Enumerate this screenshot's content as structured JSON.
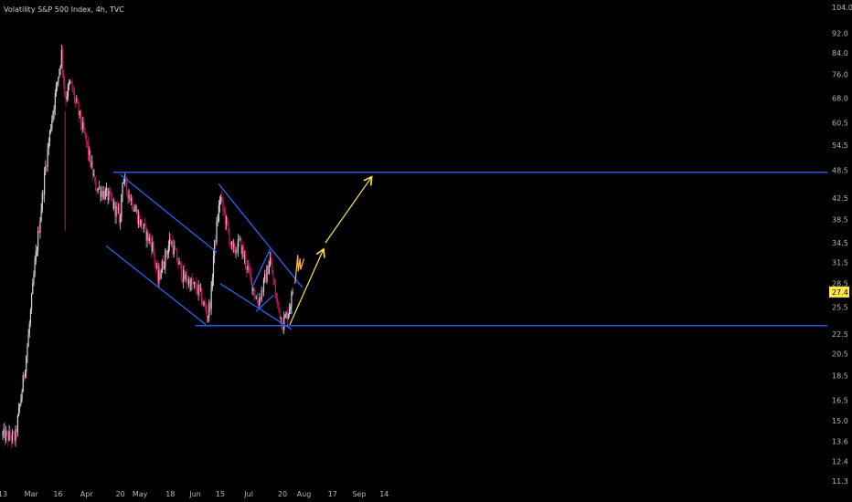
{
  "header": {
    "title": "Volatility S&P 500 Index, 4h, TVC"
  },
  "colors": {
    "background": "#000000",
    "up": "#d1d4dc",
    "down": "#c2185b",
    "trendline": "#2962ff",
    "arrow": "#ffeb3b",
    "scribble": "#ffb74d",
    "last_price": "#ffeb3b"
  },
  "chart_data": {
    "type": "candlestick",
    "title": "Volatility S&P 500 Index, 4h, TVC",
    "y_scale": "log",
    "ylim": [
      11.0,
      106.0
    ],
    "y_ticks": [
      "104.0",
      "92.0",
      "84.0",
      "76.0",
      "68.0",
      "60.5",
      "54.5",
      "48.5",
      "42.5",
      "38.5",
      "34.5",
      "31.5",
      "28.5",
      "25.5",
      "22.5",
      "20.5",
      "18.5",
      "16.5",
      "15.0",
      "13.6",
      "12.4",
      "11.3"
    ],
    "x_ticks": [
      "13",
      "Mar",
      "16",
      "Apr",
      "20",
      "May",
      "18",
      "Jun",
      "15",
      "Jul",
      "20",
      "Aug",
      "17",
      "Sep",
      "14"
    ],
    "last_price": "27.4",
    "series": [
      {
        "type": "ohlc_path",
        "anchors_x": [
          "13",
          "Feb 20",
          "Feb 24",
          "Feb 27",
          "Mar 3",
          "Mar 9",
          "Mar 12",
          "Mar 16",
          "Mar 18",
          "Mar 20",
          "Mar 23",
          "Apr 1",
          "Apr 6",
          "Apr 14",
          "Apr 20",
          "Apr 21",
          "May 1",
          "May 8",
          "May 11",
          "May 18",
          "May 25",
          "Jun 3",
          "Jun 8",
          "Jun 10",
          "Jun 11",
          "Jun 15",
          "Jun 22",
          "Jun 26",
          "Jul 6",
          "Jul 9",
          "Jul 13",
          "Jul 16",
          "Jul 20",
          "Jul 23",
          "Jul 26"
        ],
        "anchors_y": [
          14.0,
          13.8,
          17.5,
          21.5,
          31.0,
          49.0,
          60.0,
          75.0,
          84.0,
          68.0,
          73.0,
          55.0,
          45.0,
          42.5,
          38.5,
          47.0,
          38.0,
          34.0,
          29.0,
          35.0,
          29.5,
          27.5,
          24.5,
          27.0,
          32.0,
          43.0,
          33.0,
          34.5,
          26.0,
          28.0,
          32.0,
          27.0,
          23.5,
          25.0,
          27.4
        ]
      }
    ],
    "annotations": [
      {
        "type": "horizontal_line",
        "label": "resistance",
        "y": 48.0,
        "x": [
          "Apr 16",
          "end"
        ]
      },
      {
        "type": "horizontal_line",
        "label": "support",
        "y": 23.4,
        "x": [
          "Jun 1",
          "end"
        ]
      },
      {
        "type": "line",
        "label": "channel_top",
        "x": [
          "Apr 20",
          "Jun 13"
        ],
        "y": [
          47.5,
          33.0
        ]
      },
      {
        "type": "line",
        "label": "channel_bottom",
        "x": [
          "Apr 12",
          "Jun 7"
        ],
        "y": [
          34.0,
          23.5
        ]
      },
      {
        "type": "line",
        "label": "wedge_top",
        "x": [
          "Jun 14",
          "Jul 31"
        ],
        "y": [
          45.5,
          28.0
        ]
      },
      {
        "type": "line",
        "label": "wedge_bottom",
        "x": [
          "Jun 15",
          "Jul 25"
        ],
        "y": [
          28.5,
          23.0
        ]
      },
      {
        "type": "line",
        "label": "flag_top",
        "x": [
          "Jul 3",
          "Jul 13"
        ],
        "y": [
          28.0,
          33.5
        ]
      },
      {
        "type": "line",
        "label": "flag_bottom",
        "x": [
          "Jul 5",
          "Jul 15"
        ],
        "y": [
          25.0,
          27.0
        ]
      },
      {
        "type": "arrow",
        "label": "projection_1",
        "x": [
          "Jul 24",
          "Aug 12"
        ],
        "y": [
          23.5,
          33.5
        ]
      },
      {
        "type": "arrow",
        "label": "projection_2",
        "x": [
          "Aug 13",
          "Sep 8"
        ],
        "y": [
          34.5,
          47.0
        ]
      },
      {
        "type": "scribble",
        "label": "w_path",
        "x": [
          "Jul 27",
          "Aug 1"
        ],
        "y": [
          28.5,
          31.5
        ]
      }
    ]
  }
}
